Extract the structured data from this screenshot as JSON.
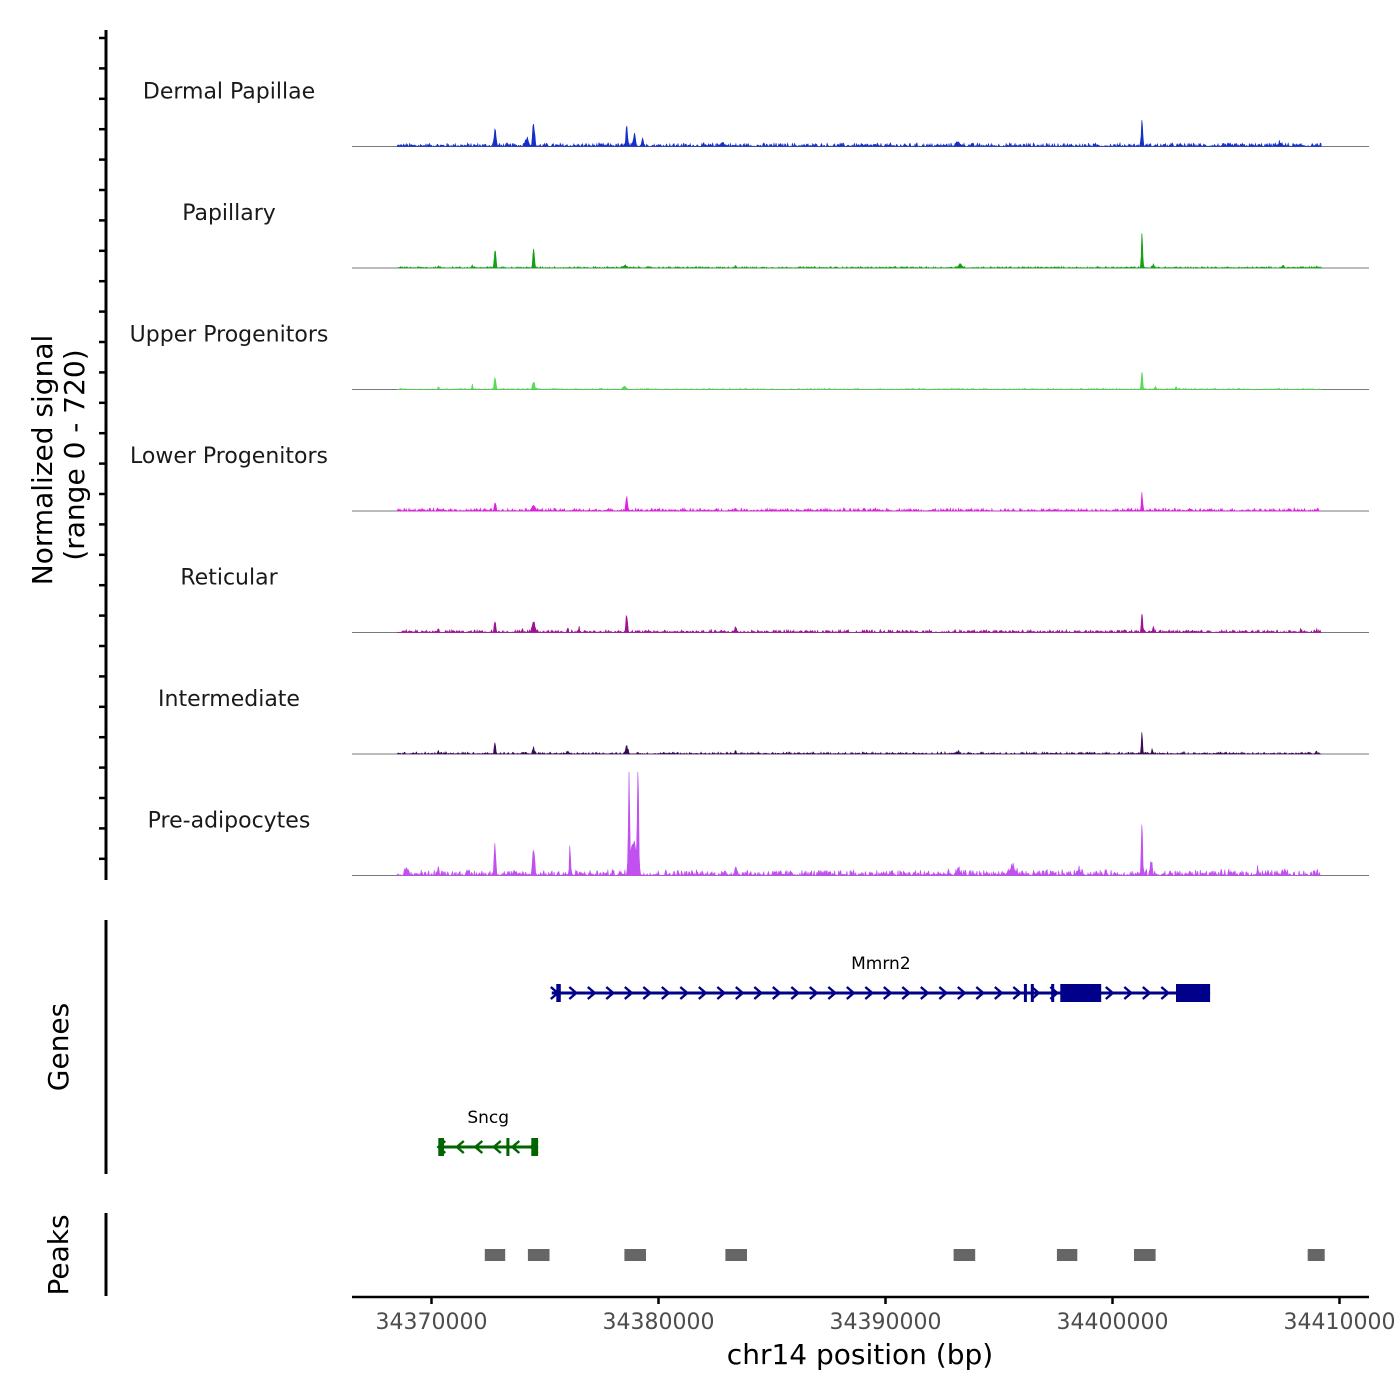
{
  "chart_data": {
    "type": "area",
    "title": "",
    "xlabel": "chr14 position (bp)",
    "signal_axis_label": [
      "Normalized signal",
      "(range 0 - 720)"
    ],
    "genes_axis_label": "Genes",
    "peaks_axis_label": "Peaks",
    "signal_range": [
      0,
      720
    ],
    "xlim": [
      34366500,
      34411300
    ],
    "x_ticks": [
      34370000,
      34380000,
      34390000,
      34400000,
      34410000
    ],
    "x_tick_labels": [
      "34370000",
      "34380000",
      "34390000",
      "34400000",
      "34410000"
    ],
    "tracks": [
      {
        "name": "Dermal Papillae",
        "color": "#1530c8",
        "noise": 0.018,
        "peaks": [
          {
            "x": 34372800,
            "h": 0.16,
            "w": 130
          },
          {
            "x": 34374500,
            "h": 0.22,
            "w": 130
          },
          {
            "x": 34374200,
            "h": 0.07,
            "w": 250
          },
          {
            "x": 34378600,
            "h": 0.2,
            "w": 110
          },
          {
            "x": 34378950,
            "h": 0.11,
            "w": 130
          },
          {
            "x": 34379300,
            "h": 0.07,
            "w": 130
          },
          {
            "x": 34382800,
            "h": 0.03,
            "w": 250
          },
          {
            "x": 34393200,
            "h": 0.03,
            "w": 350
          },
          {
            "x": 34401300,
            "h": 0.26,
            "w": 90
          },
          {
            "x": 34407400,
            "h": 0.03,
            "w": 250
          }
        ]
      },
      {
        "name": "Papillary",
        "color": "#15a015",
        "noise": 0.008,
        "peaks": [
          {
            "x": 34372800,
            "h": 0.18,
            "w": 110
          },
          {
            "x": 34374500,
            "h": 0.19,
            "w": 100
          },
          {
            "x": 34371800,
            "h": 0.03,
            "w": 80
          },
          {
            "x": 34370300,
            "h": 0.02,
            "w": 80
          },
          {
            "x": 34378500,
            "h": 0.02,
            "w": 250
          },
          {
            "x": 34383400,
            "h": 0.025,
            "w": 90
          },
          {
            "x": 34393300,
            "h": 0.04,
            "w": 200
          },
          {
            "x": 34401300,
            "h": 0.32,
            "w": 90
          },
          {
            "x": 34401800,
            "h": 0.03,
            "w": 120
          },
          {
            "x": 34407500,
            "h": 0.025,
            "w": 100
          },
          {
            "x": 34409000,
            "h": 0.02,
            "w": 80
          }
        ]
      },
      {
        "name": "Upper Progenitors",
        "color": "#55dd55",
        "noise": 0.006,
        "peaks": [
          {
            "x": 34372800,
            "h": 0.13,
            "w": 100
          },
          {
            "x": 34374500,
            "h": 0.08,
            "w": 130
          },
          {
            "x": 34371800,
            "h": 0.04,
            "w": 80
          },
          {
            "x": 34370300,
            "h": 0.02,
            "w": 80
          },
          {
            "x": 34378500,
            "h": 0.03,
            "w": 200
          },
          {
            "x": 34401300,
            "h": 0.18,
            "w": 90
          },
          {
            "x": 34401900,
            "h": 0.02,
            "w": 100
          },
          {
            "x": 34402800,
            "h": 0.02,
            "w": 80
          }
        ]
      },
      {
        "name": "Lower Progenitors",
        "color": "#e020e0",
        "noise": 0.014,
        "peaks": [
          {
            "x": 34372800,
            "h": 0.09,
            "w": 100
          },
          {
            "x": 34374500,
            "h": 0.05,
            "w": 250
          },
          {
            "x": 34378600,
            "h": 0.11,
            "w": 130
          },
          {
            "x": 34383400,
            "h": 0.025,
            "w": 100
          },
          {
            "x": 34401300,
            "h": 0.17,
            "w": 90
          }
        ]
      },
      {
        "name": "Reticular",
        "color": "#a01096",
        "noise": 0.014,
        "peaks": [
          {
            "x": 34372800,
            "h": 0.1,
            "w": 100
          },
          {
            "x": 34374500,
            "h": 0.09,
            "w": 200
          },
          {
            "x": 34374000,
            "h": 0.03,
            "w": 100
          },
          {
            "x": 34376000,
            "h": 0.04,
            "w": 80
          },
          {
            "x": 34376500,
            "h": 0.04,
            "w": 80
          },
          {
            "x": 34378600,
            "h": 0.17,
            "w": 110
          },
          {
            "x": 34383400,
            "h": 0.05,
            "w": 110
          },
          {
            "x": 34370300,
            "h": 0.03,
            "w": 80
          },
          {
            "x": 34401300,
            "h": 0.22,
            "w": 90
          },
          {
            "x": 34401800,
            "h": 0.05,
            "w": 100
          },
          {
            "x": 34408300,
            "h": 0.02,
            "w": 100
          },
          {
            "x": 34409000,
            "h": 0.02,
            "w": 80
          }
        ]
      },
      {
        "name": "Intermediate",
        "color": "#3a0a58",
        "noise": 0.01,
        "peaks": [
          {
            "x": 34372800,
            "h": 0.1,
            "w": 90
          },
          {
            "x": 34374500,
            "h": 0.06,
            "w": 110
          },
          {
            "x": 34376000,
            "h": 0.02,
            "w": 80
          },
          {
            "x": 34378600,
            "h": 0.07,
            "w": 150
          },
          {
            "x": 34383400,
            "h": 0.03,
            "w": 90
          },
          {
            "x": 34370300,
            "h": 0.03,
            "w": 80
          },
          {
            "x": 34393200,
            "h": 0.02,
            "w": 150
          },
          {
            "x": 34401300,
            "h": 0.21,
            "w": 80
          },
          {
            "x": 34401750,
            "h": 0.04,
            "w": 80
          },
          {
            "x": 34409000,
            "h": 0.02,
            "w": 80
          }
        ]
      },
      {
        "name": "Pre-adipocytes",
        "color": "#c050f0",
        "noise": 0.03,
        "peaks": [
          {
            "x": 34368900,
            "h": 0.06,
            "w": 150
          },
          {
            "x": 34370300,
            "h": 0.07,
            "w": 100
          },
          {
            "x": 34372800,
            "h": 0.29,
            "w": 110
          },
          {
            "x": 34374500,
            "h": 0.25,
            "w": 130
          },
          {
            "x": 34376100,
            "h": 0.28,
            "w": 70
          },
          {
            "x": 34378700,
            "h": 0.88,
            "w": 90
          },
          {
            "x": 34379100,
            "h": 0.9,
            "w": 90
          },
          {
            "x": 34378900,
            "h": 0.35,
            "w": 350
          },
          {
            "x": 34383400,
            "h": 0.08,
            "w": 140
          },
          {
            "x": 34393200,
            "h": 0.04,
            "w": 180
          },
          {
            "x": 34395600,
            "h": 0.07,
            "w": 400
          },
          {
            "x": 34398500,
            "h": 0.05,
            "w": 200
          },
          {
            "x": 34401300,
            "h": 0.5,
            "w": 90
          },
          {
            "x": 34401700,
            "h": 0.12,
            "w": 130
          },
          {
            "x": 34406400,
            "h": 0.06,
            "w": 100
          },
          {
            "x": 34407600,
            "h": 0.06,
            "w": 150
          },
          {
            "x": 34408900,
            "h": 0.04,
            "w": 100
          }
        ]
      }
    ],
    "genes": [
      {
        "name": "Mmrn2",
        "strand": "+",
        "color": "#00008b",
        "start": 34375300,
        "end": 34404300,
        "exons": [
          [
            34375500,
            34375700
          ],
          [
            34396100,
            34396200
          ],
          [
            34396400,
            34396500
          ],
          [
            34397300,
            34397400
          ],
          [
            34397700,
            34399500
          ],
          [
            34402800,
            34404300
          ]
        ]
      },
      {
        "name": "Sncg",
        "strand": "-",
        "color": "#006400",
        "start": 34370300,
        "end": 34374700,
        "exons": [
          [
            34370300,
            34370550
          ],
          [
            34373300,
            34373400
          ],
          [
            34374400,
            34374700
          ]
        ]
      }
    ],
    "peaks": [
      [
        34372350,
        34373250
      ],
      [
        34374250,
        34375200
      ],
      [
        34378500,
        34379450
      ],
      [
        34382950,
        34383900
      ],
      [
        34393000,
        34393950
      ],
      [
        34397550,
        34398450
      ],
      [
        34400950,
        34401900
      ],
      [
        34408600,
        34409350
      ]
    ],
    "peak_color": "#666666"
  }
}
